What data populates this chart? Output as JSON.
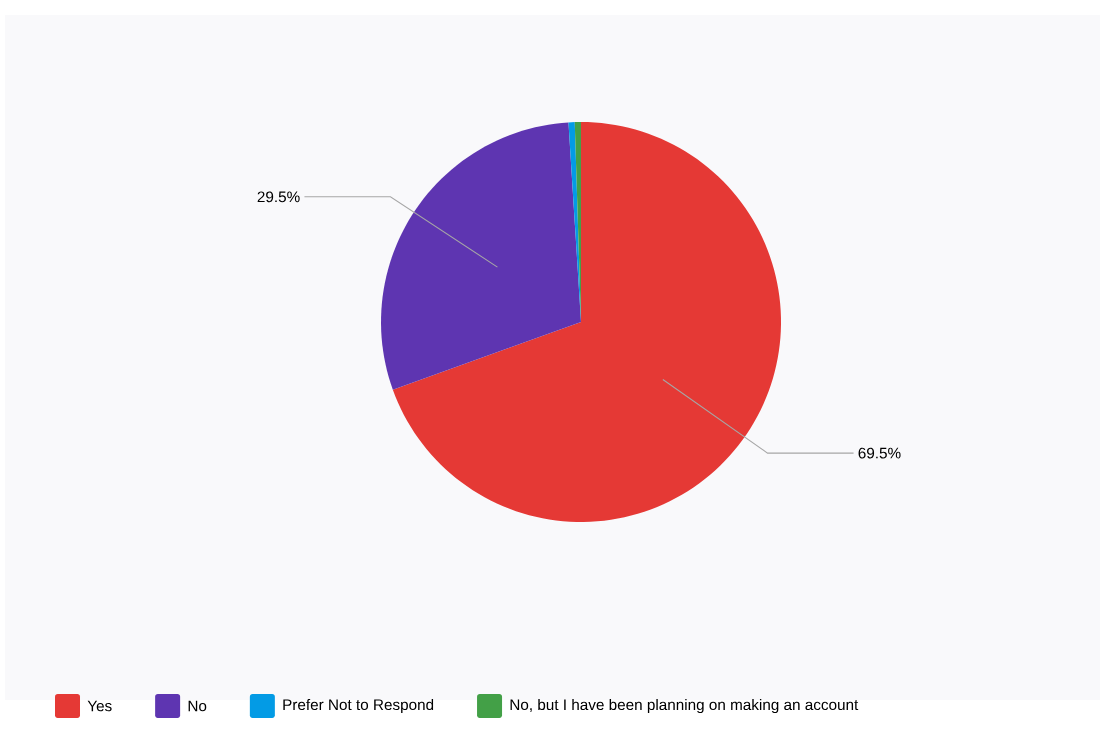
{
  "chart_data": {
    "type": "pie",
    "categories": [
      "Yes",
      "No",
      "Prefer Not to Respond",
      "No, but I have been planning on making an account"
    ],
    "values": [
      69.5,
      29.5,
      0.5,
      0.5
    ],
    "colors": [
      "#e53935",
      "#5e35b1",
      "#039be5",
      "#43a047"
    ],
    "value_labels": [
      "69.5%",
      "29.5%",
      null,
      null
    ],
    "legend": "bottom"
  }
}
